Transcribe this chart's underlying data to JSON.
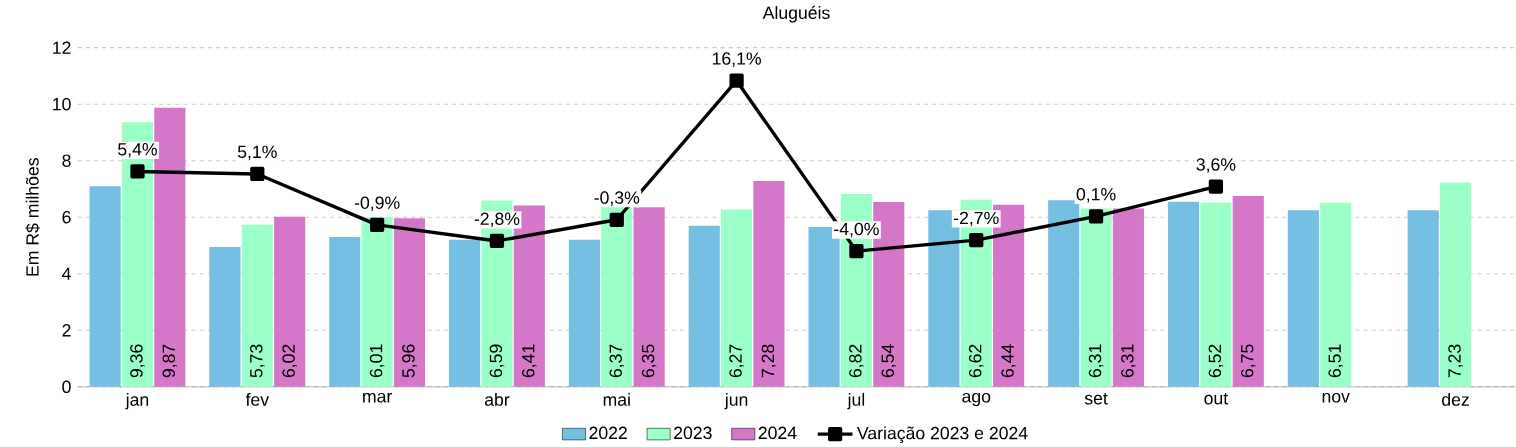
{
  "chart_data": {
    "type": "bar",
    "title": "Aluguéis",
    "ylabel": "Em R$ milhões",
    "categories": [
      "jan",
      "fev",
      "mar",
      "abr",
      "mai",
      "jun",
      "jul",
      "ago",
      "set",
      "out",
      "nov",
      "dez"
    ],
    "series": [
      {
        "name": "2022",
        "color": "#75bfe3",
        "values": [
          7.1,
          4.95,
          5.3,
          5.2,
          5.2,
          5.7,
          5.65,
          6.25,
          6.6,
          6.55,
          6.25,
          6.25
        ]
      },
      {
        "name": "2023",
        "color": "#9bffc8",
        "values": [
          9.36,
          5.73,
          6.01,
          6.59,
          6.37,
          6.27,
          6.82,
          6.62,
          6.31,
          6.52,
          6.51,
          7.23
        ],
        "value_labels": [
          "9,36",
          "5,73",
          "6,01",
          "6,59",
          "6,37",
          "6,27",
          "6,82",
          "6,62",
          "6,31",
          "6,52",
          "6,51",
          "7,23"
        ]
      },
      {
        "name": "2024",
        "color": "#d577c8",
        "values": [
          9.87,
          6.02,
          5.96,
          6.41,
          6.35,
          7.28,
          6.54,
          6.44,
          6.31,
          6.75,
          null,
          null
        ],
        "value_labels": [
          "9,87",
          "6,02",
          "5,96",
          "6,41",
          "6,35",
          "7,28",
          "6,54",
          "6,44",
          "6,31",
          "6,75",
          null,
          null
        ]
      },
      {
        "name": "Variação 2023 e 2024",
        "type": "line",
        "axis": "y2",
        "marker": "square",
        "color": "#000000",
        "values": [
          5.4,
          5.1,
          -0.9,
          -2.8,
          -0.3,
          16.1,
          -4.0,
          -2.7,
          0.1,
          3.6,
          null,
          null
        ],
        "value_labels": [
          "5,4%",
          "5,1%",
          "-0,9%",
          "-2,8%",
          "-0,3%",
          "16,1%",
          "-4,0%",
          "-2,7%",
          "0,1%",
          "3,6%",
          null,
          null
        ]
      }
    ],
    "ylim": [
      0,
      12
    ],
    "yticks": [
      0,
      2,
      4,
      6,
      8,
      10,
      12
    ],
    "y2lim": [
      -20,
      20
    ],
    "grid": "y",
    "legend": "bottom"
  }
}
